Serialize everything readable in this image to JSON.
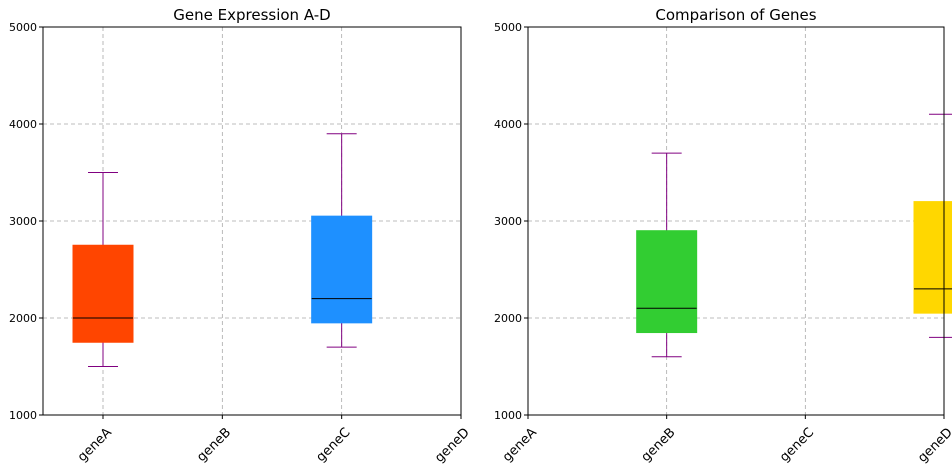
{
  "chart_data": [
    {
      "type": "box",
      "title": "Gene Expression A-D",
      "categories": [
        "geneA",
        "geneB",
        "geneC",
        "geneD"
      ],
      "ylim": [
        1000,
        5000
      ],
      "yticks": [
        1000,
        2000,
        3000,
        4000,
        5000
      ],
      "grid": true,
      "whisker_color": "#800080",
      "median_color": "#000000",
      "boxes": [
        {
          "category": "geneA",
          "min": 1500,
          "q1": 1750,
          "median": 2000,
          "q3": 2750,
          "max": 3500,
          "color": "#FF4500"
        },
        {
          "category": "geneC",
          "min": 1700,
          "q1": 1950,
          "median": 2200,
          "q3": 3050,
          "max": 3900,
          "color": "#1E90FF"
        }
      ]
    },
    {
      "type": "box",
      "title": "Comparison of Genes",
      "categories": [
        "geneA",
        "geneB",
        "geneC",
        "geneD"
      ],
      "ylim": [
        1000,
        5000
      ],
      "yticks": [
        1000,
        2000,
        3000,
        4000,
        5000
      ],
      "grid": true,
      "whisker_color": "#800080",
      "median_color": "#000000",
      "boxes": [
        {
          "category": "geneB",
          "min": 1600,
          "q1": 1850,
          "median": 2100,
          "q3": 2900,
          "max": 3700,
          "color": "#32CD32"
        },
        {
          "category": "geneD",
          "min": 1800,
          "q1": 2050,
          "median": 2300,
          "q3": 3200,
          "max": 4100,
          "color": "#FFD700"
        }
      ]
    }
  ]
}
